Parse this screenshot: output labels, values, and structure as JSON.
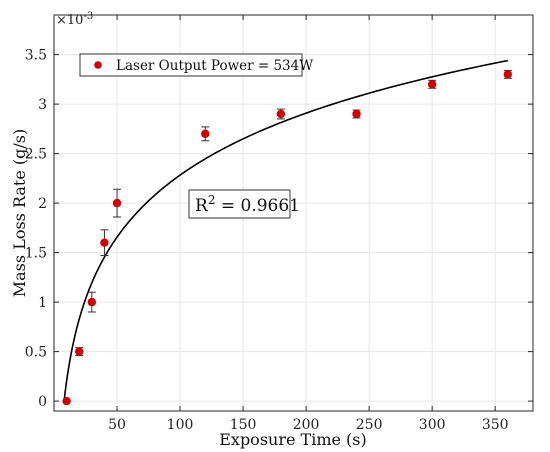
{
  "chart_data": {
    "type": "scatter",
    "xlabel": "Exposure Time (s)",
    "ylabel": "Mass Loss Rate (g/s)",
    "y_multiplier_base": "×10",
    "y_multiplier_exp": "-3",
    "xlim": [
      0,
      380
    ],
    "ylim": [
      -0.1,
      3.9
    ],
    "xticks": [
      "50",
      "100",
      "150",
      "200",
      "250",
      "300",
      "350"
    ],
    "yticks": [
      "0",
      "0.5",
      "1",
      "1.5",
      "2",
      "2.5",
      "3",
      "3.5"
    ],
    "grid": true,
    "legend_placement": "top-left",
    "series": [
      {
        "name": "Laser Output Power = 534W",
        "color": "#d00000",
        "x": [
          10,
          20,
          30,
          40,
          50,
          120,
          180,
          240,
          300,
          360
        ],
        "y": [
          0.0,
          0.5,
          1.0,
          1.6,
          2.0,
          2.7,
          2.9,
          2.9,
          3.2,
          3.3
        ],
        "yerr": [
          0.0,
          0.04,
          0.1,
          0.13,
          0.14,
          0.07,
          0.05,
          0.04,
          0.04,
          0.04
        ]
      }
    ],
    "fit": {
      "type": "logarithmic",
      "color": "#000000",
      "x_start": 8,
      "x_end": 360,
      "y_at_start": 0.0,
      "y_at_end": 3.44
    },
    "annotation": {
      "base": "R",
      "sup": "2",
      "rest": " = 0.9661"
    }
  }
}
